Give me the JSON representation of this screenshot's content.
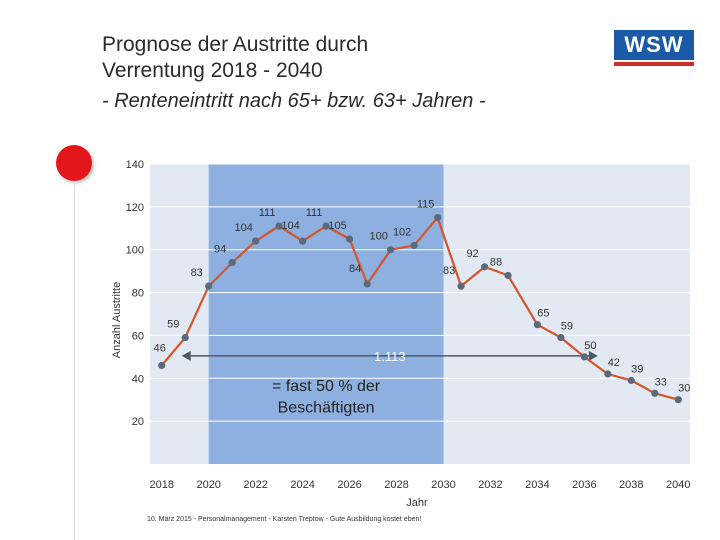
{
  "header": {
    "title_line1": "Prognose der Austritte durch",
    "title_line2": "Verrentung 2018 - 2040",
    "subtitle": "- Renteneintritt nach 65+ bzw. 63+ Jahren -"
  },
  "logo": {
    "text": "WSW"
  },
  "footer": {
    "text": "10. März 2015 - Personalmanagement - Karsten Treptow - Gute Ausbildung kostet eben!"
  },
  "colors": {
    "plot_bg": "#e3e9f2",
    "highlight": "#8db0e0",
    "line": "#d4542c",
    "marker": "#5a6a7a",
    "logo": "#1a5aa6",
    "accent": "#e3161b"
  },
  "chart_data": {
    "type": "line",
    "title": "Prognose der Austritte durch Verrentung 2018 - 2040",
    "xlabel": "Jahr",
    "ylabel": "Anzahl Austritte",
    "xlim": [
      2017.5,
      2040.5
    ],
    "ylim": [
      0,
      140
    ],
    "yticks": [
      20,
      40,
      60,
      80,
      100,
      120,
      140
    ],
    "xticks": [
      2018,
      2020,
      2022,
      2024,
      2026,
      2028,
      2030,
      2032,
      2034,
      2036,
      2038,
      2040
    ],
    "highlight_range": [
      2020,
      2030
    ],
    "series": [
      {
        "name": "Austritte",
        "points": [
          {
            "x": 2018,
            "y": 46,
            "label": "46"
          },
          {
            "x": 2019,
            "y": 59,
            "label": "59"
          },
          {
            "x": 2020,
            "y": 83,
            "label": "83"
          },
          {
            "x": 2021,
            "y": 94,
            "label": "94"
          },
          {
            "x": 2022,
            "y": 104,
            "label": "104"
          },
          {
            "x": 2023,
            "y": 111,
            "label": "111"
          },
          {
            "x": 2024,
            "y": 104,
            "label": "104"
          },
          {
            "x": 2025,
            "y": 111,
            "label": "111"
          },
          {
            "x": 2026,
            "y": 105,
            "label": "105"
          },
          {
            "x": 2026.75,
            "y": 84,
            "label": "84"
          },
          {
            "x": 2027.75,
            "y": 100,
            "label": "100"
          },
          {
            "x": 2028.75,
            "y": 102,
            "label": "102"
          },
          {
            "x": 2029.75,
            "y": 115,
            "label": "115"
          },
          {
            "x": 2030.75,
            "y": 83,
            "label": "83"
          },
          {
            "x": 2031.75,
            "y": 92,
            "label": "92"
          },
          {
            "x": 2032.75,
            "y": 88,
            "label": "88"
          },
          {
            "x": 2034,
            "y": 65,
            "label": "65"
          },
          {
            "x": 2035,
            "y": 59,
            "label": "59"
          },
          {
            "x": 2036,
            "y": 50,
            "label": "50"
          },
          {
            "x": 2037,
            "y": 42,
            "label": "42"
          },
          {
            "x": 2038,
            "y": 39,
            "label": "39"
          },
          {
            "x": 2039,
            "y": 33,
            "label": "33"
          },
          {
            "x": 2040,
            "y": 30,
            "label": "30"
          }
        ]
      }
    ],
    "annotations": {
      "sum_label": "1.113",
      "sum_range": [
        2018,
        2037
      ],
      "sum_level": 50,
      "note_line1": "= fast 50 % der",
      "note_line2": "Beschäftigten"
    }
  }
}
